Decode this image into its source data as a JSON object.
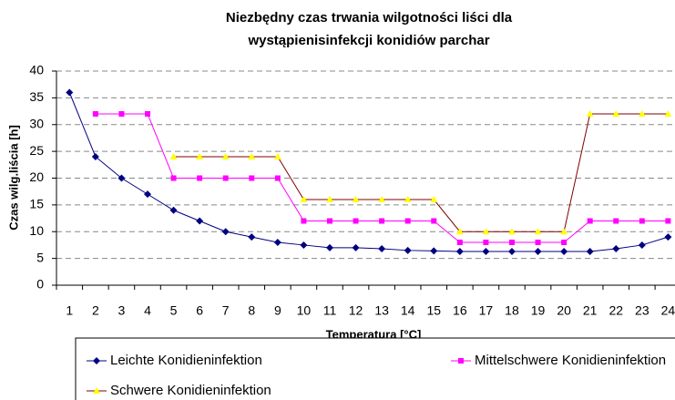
{
  "chart_data": {
    "type": "line",
    "title": [
      "Niezbędny czas trwania wilgotności liści dla",
      "wystąpienisinfekcji konidiów parchar"
    ],
    "x_label": "Temperatura  [°C]",
    "y_label": "Czas wilg.liścia [h]",
    "categories": [
      "1",
      "2",
      "3",
      "4",
      "5",
      "6",
      "7",
      "8",
      "9",
      "10",
      "11",
      "12",
      "13",
      "14",
      "15",
      "16",
      "17",
      "18",
      "19",
      "20",
      "21",
      "22",
      "23",
      "24"
    ],
    "series": [
      {
        "name": "Leichte Konidieninfektion",
        "color": "#000080",
        "line_color": "#000080",
        "marker": "diamond",
        "values": [
          36,
          24,
          20,
          17,
          14,
          12,
          10,
          9,
          8,
          7.5,
          7,
          7,
          6.8,
          6.5,
          6.4,
          6.3,
          6.3,
          6.3,
          6.3,
          6.3,
          6.3,
          6.8,
          7.5,
          9
        ]
      },
      {
        "name": "Mittelschwere Konidieninfektion",
        "color": "#ff00ff",
        "line_color": "#ff00ff",
        "marker": "square",
        "values": [
          null,
          32,
          32,
          32,
          20,
          20,
          20,
          20,
          20,
          12,
          12,
          12,
          12,
          12,
          12,
          8,
          8,
          8,
          8,
          8,
          12,
          12,
          12,
          12
        ]
      },
      {
        "name": "Schwere Konidieninfektion",
        "color": "#ffff00",
        "line_color": "#800000",
        "marker": "triangle",
        "values": [
          null,
          null,
          null,
          null,
          24,
          24,
          24,
          24,
          24,
          16,
          16,
          16,
          16,
          16,
          16,
          10,
          10,
          10,
          10,
          10,
          32,
          32,
          32,
          32
        ]
      }
    ],
    "ylim": [
      0,
      40
    ],
    "yticks": [
      0,
      5,
      10,
      15,
      20,
      25,
      30,
      35,
      40
    ],
    "grid": true
  }
}
